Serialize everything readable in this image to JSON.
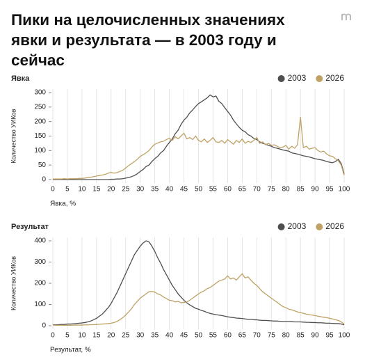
{
  "title": "Пики на целочисленных значениях явки и результата — в 2003 году и сейчас",
  "chart_data": [
    {
      "type": "line",
      "title": "Явка",
      "xlabel": "Явка, %",
      "ylabel": "Количество УИКов",
      "legend": "top-right",
      "grid": true,
      "xlim": [
        0,
        100
      ],
      "xticks": [
        0,
        5,
        10,
        15,
        20,
        25,
        30,
        35,
        40,
        45,
        50,
        55,
        60,
        65,
        70,
        75,
        80,
        85,
        90,
        95,
        100
      ],
      "ylim": [
        0,
        300
      ],
      "yticks": [
        0,
        50,
        100,
        150,
        200,
        250,
        300
      ],
      "x": [
        0,
        1,
        2,
        3,
        4,
        5,
        6,
        7,
        8,
        9,
        10,
        11,
        12,
        13,
        14,
        15,
        16,
        17,
        18,
        19,
        20,
        21,
        22,
        23,
        24,
        25,
        26,
        27,
        28,
        29,
        30,
        31,
        32,
        33,
        34,
        35,
        36,
        37,
        38,
        39,
        40,
        41,
        42,
        43,
        44,
        45,
        46,
        47,
        48,
        49,
        50,
        51,
        52,
        53,
        54,
        55,
        56,
        57,
        58,
        59,
        60,
        61,
        62,
        63,
        64,
        65,
        66,
        67,
        68,
        69,
        70,
        71,
        72,
        73,
        74,
        75,
        76,
        77,
        78,
        79,
        80,
        81,
        82,
        83,
        84,
        85,
        86,
        87,
        88,
        89,
        90,
        91,
        92,
        93,
        94,
        95,
        96,
        97,
        98,
        99,
        100
      ],
      "series": [
        {
          "name": "2003",
          "color": "#4f4f4f",
          "values": [
            0,
            0,
            0,
            0,
            0,
            0,
            0,
            0,
            0,
            0,
            0,
            0,
            0,
            0,
            0,
            0,
            0,
            0,
            0,
            0,
            1,
            1,
            2,
            2,
            3,
            5,
            7,
            10,
            14,
            20,
            28,
            35,
            45,
            50,
            62,
            72,
            80,
            92,
            100,
            115,
            128,
            140,
            158,
            170,
            190,
            205,
            215,
            230,
            240,
            252,
            262,
            268,
            275,
            282,
            292,
            285,
            288,
            270,
            262,
            248,
            235,
            222,
            205,
            192,
            180,
            170,
            165,
            155,
            150,
            142,
            138,
            130,
            125,
            122,
            118,
            115,
            110,
            108,
            105,
            102,
            100,
            98,
            92,
            90,
            88,
            85,
            82,
            80,
            78,
            75,
            72,
            70,
            68,
            66,
            62,
            60,
            58,
            62,
            70,
            55,
            20
          ]
        },
        {
          "name": "2026",
          "color": "#bfa265",
          "values": [
            2,
            2,
            2,
            2,
            3,
            2,
            3,
            3,
            3,
            4,
            4,
            5,
            7,
            8,
            10,
            12,
            14,
            16,
            18,
            22,
            25,
            22,
            24,
            28,
            32,
            40,
            48,
            55,
            62,
            70,
            80,
            86,
            92,
            100,
            112,
            122,
            126,
            130,
            132,
            138,
            142,
            135,
            148,
            140,
            150,
            160,
            140,
            145,
            138,
            150,
            135,
            130,
            140,
            128,
            135,
            145,
            130,
            128,
            135,
            125,
            138,
            130,
            122,
            135,
            128,
            140,
            125,
            132,
            128,
            135,
            145,
            125,
            130,
            120,
            125,
            118,
            120,
            115,
            110,
            112,
            118,
            105,
            115,
            108,
            120,
            215,
            110,
            115,
            105,
            108,
            110,
            100,
            95,
            98,
            88,
            82,
            80,
            72,
            65,
            50,
            15
          ]
        }
      ]
    },
    {
      "type": "line",
      "title": "Результат",
      "xlabel": "Результат, %",
      "ylabel": "Количество УИКов",
      "legend": "top-right",
      "grid": true,
      "xlim": [
        0,
        100
      ],
      "xticks": [
        0,
        5,
        10,
        15,
        20,
        25,
        30,
        35,
        40,
        45,
        50,
        55,
        60,
        65,
        70,
        75,
        80,
        85,
        90,
        95,
        100
      ],
      "ylim": [
        0,
        400
      ],
      "yticks": [
        0,
        100,
        200,
        300,
        400
      ],
      "x": [
        0,
        1,
        2,
        3,
        4,
        5,
        6,
        7,
        8,
        9,
        10,
        11,
        12,
        13,
        14,
        15,
        16,
        17,
        18,
        19,
        20,
        21,
        22,
        23,
        24,
        25,
        26,
        27,
        28,
        29,
        30,
        31,
        32,
        33,
        34,
        35,
        36,
        37,
        38,
        39,
        40,
        41,
        42,
        43,
        44,
        45,
        46,
        47,
        48,
        49,
        50,
        51,
        52,
        53,
        54,
        55,
        56,
        57,
        58,
        59,
        60,
        61,
        62,
        63,
        64,
        65,
        66,
        67,
        68,
        69,
        70,
        71,
        72,
        73,
        74,
        75,
        76,
        77,
        78,
        79,
        80,
        81,
        82,
        83,
        84,
        85,
        86,
        87,
        88,
        89,
        90,
        91,
        92,
        93,
        94,
        95,
        96,
        97,
        98,
        99,
        100
      ],
      "series": [
        {
          "name": "2003",
          "color": "#4f4f4f",
          "values": [
            5,
            4,
            5,
            6,
            6,
            8,
            8,
            9,
            10,
            12,
            13,
            15,
            18,
            22,
            28,
            35,
            45,
            55,
            70,
            85,
            105,
            130,
            155,
            185,
            215,
            245,
            275,
            305,
            335,
            355,
            375,
            390,
            400,
            395,
            375,
            350,
            320,
            295,
            265,
            240,
            215,
            190,
            170,
            150,
            135,
            120,
            108,
            98,
            90,
            82,
            78,
            72,
            68,
            62,
            58,
            55,
            52,
            50,
            48,
            45,
            42,
            40,
            38,
            36,
            35,
            34,
            32,
            30,
            30,
            28,
            28,
            26,
            25,
            25,
            24,
            23,
            22,
            22,
            21,
            20,
            20,
            20,
            19,
            18,
            18,
            18,
            17,
            16,
            16,
            15,
            15,
            14,
            14,
            13,
            12,
            12,
            11,
            10,
            10,
            8,
            4
          ]
        },
        {
          "name": "2026",
          "color": "#bfa265",
          "values": [
            3,
            2,
            2,
            2,
            2,
            2,
            2,
            3,
            3,
            3,
            3,
            4,
            4,
            5,
            5,
            6,
            7,
            8,
            9,
            10,
            12,
            15,
            20,
            28,
            38,
            50,
            65,
            80,
            100,
            115,
            130,
            140,
            150,
            160,
            162,
            158,
            150,
            145,
            135,
            128,
            120,
            118,
            112,
            115,
            108,
            110,
            112,
            120,
            130,
            140,
            150,
            158,
            165,
            175,
            180,
            190,
            200,
            210,
            215,
            220,
            235,
            220,
            225,
            215,
            230,
            245,
            225,
            230,
            215,
            200,
            190,
            175,
            160,
            150,
            140,
            130,
            120,
            110,
            100,
            90,
            85,
            78,
            75,
            70,
            65,
            62,
            58,
            55,
            52,
            50,
            48,
            45,
            42,
            40,
            38,
            35,
            32,
            28,
            25,
            18,
            8
          ]
        }
      ]
    }
  ]
}
